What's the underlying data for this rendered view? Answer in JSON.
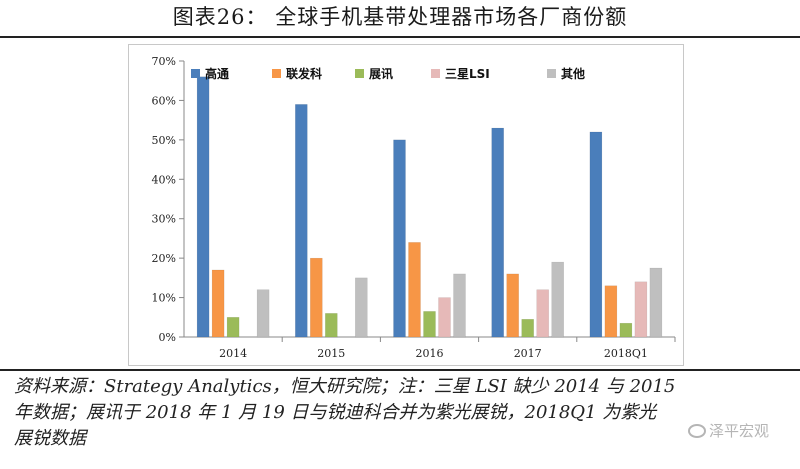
{
  "title": "图表26： 全球手机基带处理器市场各厂商份额",
  "source_lines": [
    "资料来源：Strategy Analytics，恒大研究院；注：三星 LSI 缺少 2014 与 2015",
    "年数据；展讯于 2018 年 1 月 19 日与锐迪科合并为紫光展锐，2018Q1 为紫光",
    "展锐数据"
  ],
  "watermark": "泽平宏观",
  "colors": {
    "高通": "#4a7ebb",
    "联发科": "#f79646",
    "展讯": "#9bbb59",
    "三星LSI": "#e6b9b8",
    "其他": "#bfbfbf"
  },
  "chart_data": {
    "type": "bar",
    "title": "",
    "xlabel": "",
    "ylabel": "",
    "categories": [
      "2014",
      "2015",
      "2016",
      "2017",
      "2018Q1"
    ],
    "ylim": [
      0,
      70
    ],
    "yticks": [
      "0%",
      "10%",
      "20%",
      "30%",
      "40%",
      "50%",
      "60%",
      "70%"
    ],
    "grid": false,
    "legend": "top",
    "series": [
      {
        "name": "高通",
        "values": [
          66,
          59,
          50,
          53,
          52
        ]
      },
      {
        "name": "联发科",
        "values": [
          17,
          20,
          24,
          16,
          13
        ]
      },
      {
        "name": "展讯",
        "values": [
          5,
          6,
          6.5,
          4.5,
          3.5
        ]
      },
      {
        "name": "三星LSI",
        "values": [
          null,
          null,
          10,
          12,
          14
        ]
      },
      {
        "name": "其他",
        "values": [
          12,
          15,
          16,
          19,
          17.5
        ]
      }
    ]
  }
}
